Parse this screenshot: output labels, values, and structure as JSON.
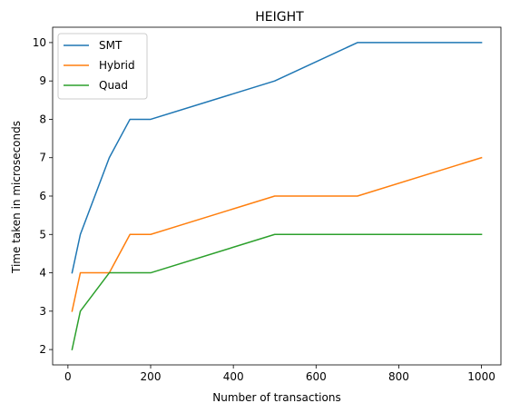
{
  "chart_data": {
    "type": "line",
    "title": "HEIGHT",
    "xlabel": "Number of transactions",
    "ylabel": "Time taken in microseconds",
    "xlim": [
      -37,
      1047
    ],
    "ylim": [
      1.6,
      10.4
    ],
    "xticks": [
      0,
      200,
      400,
      600,
      800,
      1000
    ],
    "yticks": [
      2,
      3,
      4,
      5,
      6,
      7,
      8,
      9,
      10
    ],
    "grid": false,
    "legend_position": "top-left",
    "x": [
      10,
      30,
      100,
      150,
      200,
      500,
      700,
      1000
    ],
    "series": [
      {
        "name": "SMT",
        "color": "#1f77b4",
        "values": [
          4,
          5,
          7,
          8,
          8,
          9,
          10,
          10
        ]
      },
      {
        "name": "Hybrid",
        "color": "#ff7f0e",
        "values": [
          3,
          4,
          4,
          5,
          5,
          6,
          6,
          7
        ]
      },
      {
        "name": "Quad",
        "color": "#2ca02c",
        "values": [
          2,
          3,
          4,
          4,
          4,
          5,
          5,
          5
        ]
      }
    ]
  }
}
